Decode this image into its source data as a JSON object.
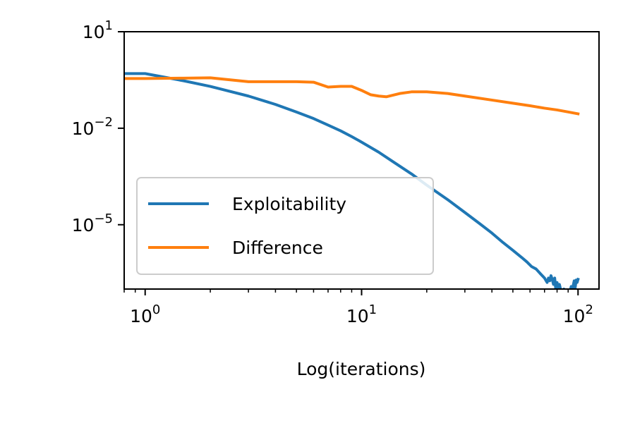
{
  "chart_data": {
    "type": "line",
    "title": "",
    "xlabel": "Log(iterations)",
    "ylabel": "",
    "xscale": "log",
    "yscale": "log",
    "xlim": [
      0.8,
      125
    ],
    "ylim": [
      1e-07,
      10
    ],
    "grid": false,
    "legend_position": "lower-left",
    "x_ticks": [
      {
        "value": 1,
        "base": "10",
        "exp": "0"
      },
      {
        "value": 10,
        "base": "10",
        "exp": "1"
      },
      {
        "value": 100,
        "base": "10",
        "exp": "2"
      }
    ],
    "y_ticks": [
      {
        "value": 10,
        "base": "10",
        "exp": "1"
      },
      {
        "value": 0.01,
        "base": "10",
        "exp": "−2"
      },
      {
        "value": 1e-05,
        "base": "10",
        "exp": "−5"
      }
    ],
    "series": [
      {
        "name": "Exploitability",
        "color": "#1f77b4",
        "points": [
          [
            0.8,
            0.5
          ],
          [
            1,
            0.5
          ],
          [
            1.5,
            0.3
          ],
          [
            2,
            0.2
          ],
          [
            3,
            0.1
          ],
          [
            4,
            0.055
          ],
          [
            5,
            0.032
          ],
          [
            6,
            0.02
          ],
          [
            7,
            0.0125
          ],
          [
            8,
            0.0083
          ],
          [
            9,
            0.0055
          ],
          [
            10,
            0.0037
          ],
          [
            12,
            0.0018
          ],
          [
            14,
            0.0009
          ],
          [
            17,
            0.00038
          ],
          [
            20,
            0.00017
          ],
          [
            25,
            6e-05
          ],
          [
            30,
            2.4e-05
          ],
          [
            35,
            1.1e-05
          ],
          [
            40,
            5.5e-06
          ],
          [
            45,
            2.8e-06
          ],
          [
            50,
            1.6e-06
          ],
          [
            55,
            9.5e-07
          ],
          [
            58,
            7e-07
          ],
          [
            61,
            5e-07
          ],
          [
            64,
            4.2e-07
          ],
          [
            67,
            3e-07
          ],
          [
            70,
            2.2e-07
          ],
          [
            72,
            1.6e-07
          ],
          [
            73,
            2.2e-07
          ],
          [
            74,
            1.8e-07
          ],
          [
            75,
            2.6e-07
          ],
          [
            76,
            2e-07
          ],
          [
            77,
            1.4e-07
          ],
          [
            78,
            2.2e-07
          ],
          [
            79,
            9e-08
          ],
          [
            80,
            1.6e-07
          ],
          [
            81,
            6e-08
          ],
          [
            82,
            1.4e-07
          ],
          [
            83,
            1e-07
          ],
          [
            84,
            9e-08
          ],
          [
            85,
            5e-08
          ],
          [
            86,
            1e-07
          ],
          [
            87,
            4e-08
          ],
          [
            88,
            7e-08
          ],
          [
            89,
            3e-08
          ],
          [
            90,
            6e-08
          ],
          [
            91,
            4e-08
          ],
          [
            92,
            9e-08
          ],
          [
            93,
            1.2e-07
          ],
          [
            94,
            5e-08
          ],
          [
            95,
            1.3e-07
          ],
          [
            96,
            1.8e-07
          ],
          [
            97,
            1.1e-07
          ],
          [
            98,
            1.9e-07
          ],
          [
            99,
            1.6e-07
          ],
          [
            100,
            2e-07
          ]
        ]
      },
      {
        "name": "Difference",
        "color": "#ff7f0e",
        "points": [
          [
            0.8,
            0.35
          ],
          [
            1,
            0.35
          ],
          [
            1.5,
            0.36
          ],
          [
            2,
            0.37
          ],
          [
            3,
            0.28
          ],
          [
            4,
            0.28
          ],
          [
            5,
            0.28
          ],
          [
            6,
            0.27
          ],
          [
            7,
            0.19
          ],
          [
            8,
            0.2
          ],
          [
            9,
            0.2
          ],
          [
            10,
            0.15
          ],
          [
            11,
            0.11
          ],
          [
            12,
            0.1
          ],
          [
            13,
            0.095
          ],
          [
            15,
            0.12
          ],
          [
            17,
            0.135
          ],
          [
            20,
            0.135
          ],
          [
            25,
            0.12
          ],
          [
            30,
            0.1
          ],
          [
            40,
            0.075
          ],
          [
            50,
            0.06
          ],
          [
            60,
            0.05
          ],
          [
            70,
            0.042
          ],
          [
            80,
            0.037
          ],
          [
            90,
            0.032
          ],
          [
            100,
            0.028
          ]
        ]
      }
    ]
  }
}
